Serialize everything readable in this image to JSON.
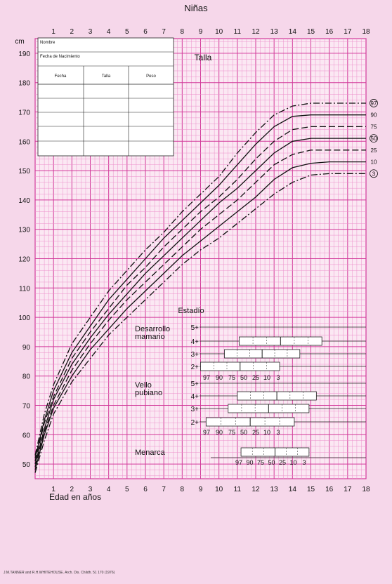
{
  "chart_data": {
    "type": "line",
    "title": "Niñas",
    "panel_label": "Talla",
    "y_unit": "cm",
    "xlabel": "Edad en años",
    "xlim": [
      0,
      18
    ],
    "ylim": [
      45,
      195
    ],
    "x_ticks_top": [
      "1",
      "2",
      "3",
      "4",
      "5",
      "6",
      "7",
      "8",
      "9",
      "10",
      "11",
      "12",
      "13",
      "14",
      "15",
      "16",
      "17",
      "18"
    ],
    "x_ticks_bottom": [
      "1",
      "2",
      "3",
      "4",
      "5",
      "6",
      "7",
      "8",
      "9",
      "10",
      "11",
      "12",
      "13",
      "14",
      "15",
      "16",
      "17",
      "18"
    ],
    "y_ticks": [
      "50",
      "60",
      "70",
      "80",
      "90",
      "100",
      "110",
      "120",
      "130",
      "140",
      "150",
      "160",
      "170",
      "180",
      "190"
    ],
    "series": [
      {
        "name": "97",
        "circled": true,
        "x": [
          0,
          0.5,
          1,
          2,
          3,
          4,
          5,
          6,
          7,
          8,
          9,
          10,
          11,
          12,
          13,
          14,
          15,
          16,
          17,
          18
        ],
        "y": [
          53,
          67,
          77,
          91,
          100,
          109,
          116,
          123,
          129,
          136,
          142,
          148,
          156,
          163,
          169,
          172,
          173,
          173,
          173,
          173
        ]
      },
      {
        "name": "90",
        "circled": false,
        "x": [
          0,
          0.5,
          1,
          2,
          3,
          4,
          5,
          6,
          7,
          8,
          9,
          10,
          11,
          12,
          13,
          14,
          15,
          16,
          17,
          18
        ],
        "y": [
          52,
          65,
          75,
          88,
          97,
          106,
          113,
          120,
          127,
          133,
          139,
          145,
          152,
          159,
          165,
          168.5,
          169,
          169,
          169,
          169
        ]
      },
      {
        "name": "75",
        "circled": false,
        "x": [
          0,
          0.5,
          1,
          2,
          3,
          4,
          5,
          6,
          7,
          8,
          9,
          10,
          11,
          12,
          13,
          14,
          15,
          16,
          17,
          18
        ],
        "y": [
          51,
          64,
          73,
          86,
          95,
          103,
          111,
          117,
          124,
          130,
          136,
          141,
          147,
          154,
          160,
          164,
          165,
          165,
          165,
          165
        ]
      },
      {
        "name": "50",
        "circled": true,
        "x": [
          0,
          0.5,
          1,
          2,
          3,
          4,
          5,
          6,
          7,
          8,
          9,
          10,
          11,
          12,
          13,
          14,
          15,
          16,
          17,
          18
        ],
        "y": [
          50,
          62,
          72,
          84,
          93,
          101,
          108,
          115,
          121,
          127,
          133,
          139,
          144,
          150,
          156,
          160,
          161,
          161,
          161,
          161
        ]
      },
      {
        "name": "25",
        "circled": false,
        "x": [
          0,
          0.5,
          1,
          2,
          3,
          4,
          5,
          6,
          7,
          8,
          9,
          10,
          11,
          12,
          13,
          14,
          15,
          16,
          17,
          18
        ],
        "y": [
          49,
          61,
          70,
          82,
          91,
          99,
          106,
          112,
          118,
          124,
          130,
          135,
          140,
          146,
          152,
          155.5,
          157,
          157,
          157,
          157
        ]
      },
      {
        "name": "10",
        "circled": false,
        "x": [
          0,
          0.5,
          1,
          2,
          3,
          4,
          5,
          6,
          7,
          8,
          9,
          10,
          11,
          12,
          13,
          14,
          15,
          16,
          17,
          18
        ],
        "y": [
          48,
          60,
          69,
          80,
          89,
          96,
          103,
          109,
          115,
          121,
          126,
          131,
          136,
          141,
          147,
          151,
          152.5,
          153,
          153,
          153
        ]
      },
      {
        "name": "3",
        "circled": true,
        "x": [
          0,
          0.5,
          1,
          2,
          3,
          4,
          5,
          6,
          7,
          8,
          9,
          10,
          11,
          12,
          13,
          14,
          15,
          16,
          17,
          18
        ],
        "y": [
          47,
          58,
          67,
          78,
          86,
          94,
          100,
          106,
          112,
          118,
          123,
          127,
          132,
          137,
          142,
          146,
          148.5,
          149,
          149,
          149
        ]
      }
    ],
    "grid": true,
    "staging": {
      "title": "Estadío",
      "groups": [
        {
          "label_lines": [
            "Desarrollo",
            "mamario"
          ],
          "stages": [
            "5+",
            "4+",
            "3+",
            "2+"
          ],
          "percentile_labels": [
            "97",
            "90",
            "75",
            "50",
            "25",
            "10",
            "3"
          ]
        },
        {
          "label_lines": [
            "Vello",
            "pubiano"
          ],
          "stages": [
            "5+",
            "4+",
            "3+",
            "2+"
          ],
          "percentile_labels": [
            "97",
            "90",
            "75",
            "50",
            "25",
            "10",
            "3"
          ]
        },
        {
          "label_lines": [
            "Menarca"
          ],
          "stages": [],
          "percentile_labels": [
            "97",
            "90",
            "75",
            "50",
            "25",
            "10",
            "3"
          ]
        }
      ],
      "bars": [
        {
          "group": 0,
          "stage": "4+",
          "x_start": 11.1,
          "x_end": 15.6
        },
        {
          "group": 0,
          "stage": "3+",
          "x_start": 10.3,
          "x_end": 14.4
        },
        {
          "group": 0,
          "stage": "2+",
          "x_start": 9.0,
          "x_end": 13.3
        },
        {
          "group": 1,
          "stage": "4+",
          "x_start": 11.0,
          "x_end": 15.3
        },
        {
          "group": 1,
          "stage": "3+",
          "x_start": 10.5,
          "x_end": 14.9
        },
        {
          "group": 1,
          "stage": "2+",
          "x_start": 9.3,
          "x_end": 14.1
        },
        {
          "group": 2,
          "stage": "",
          "x_start": 11.2,
          "x_end": 14.9
        }
      ]
    }
  },
  "record_table": {
    "name_label": "Nombre",
    "birth_label": "Fecha de Nacimiento",
    "columns": [
      "Fecha",
      "Talla",
      "Peso"
    ],
    "empty_rows": 5
  },
  "footer_text": "J.M.TANNER and R.H.WHITEHOUSE. Arch. Dis. Childh. 51 170 (1976)"
}
